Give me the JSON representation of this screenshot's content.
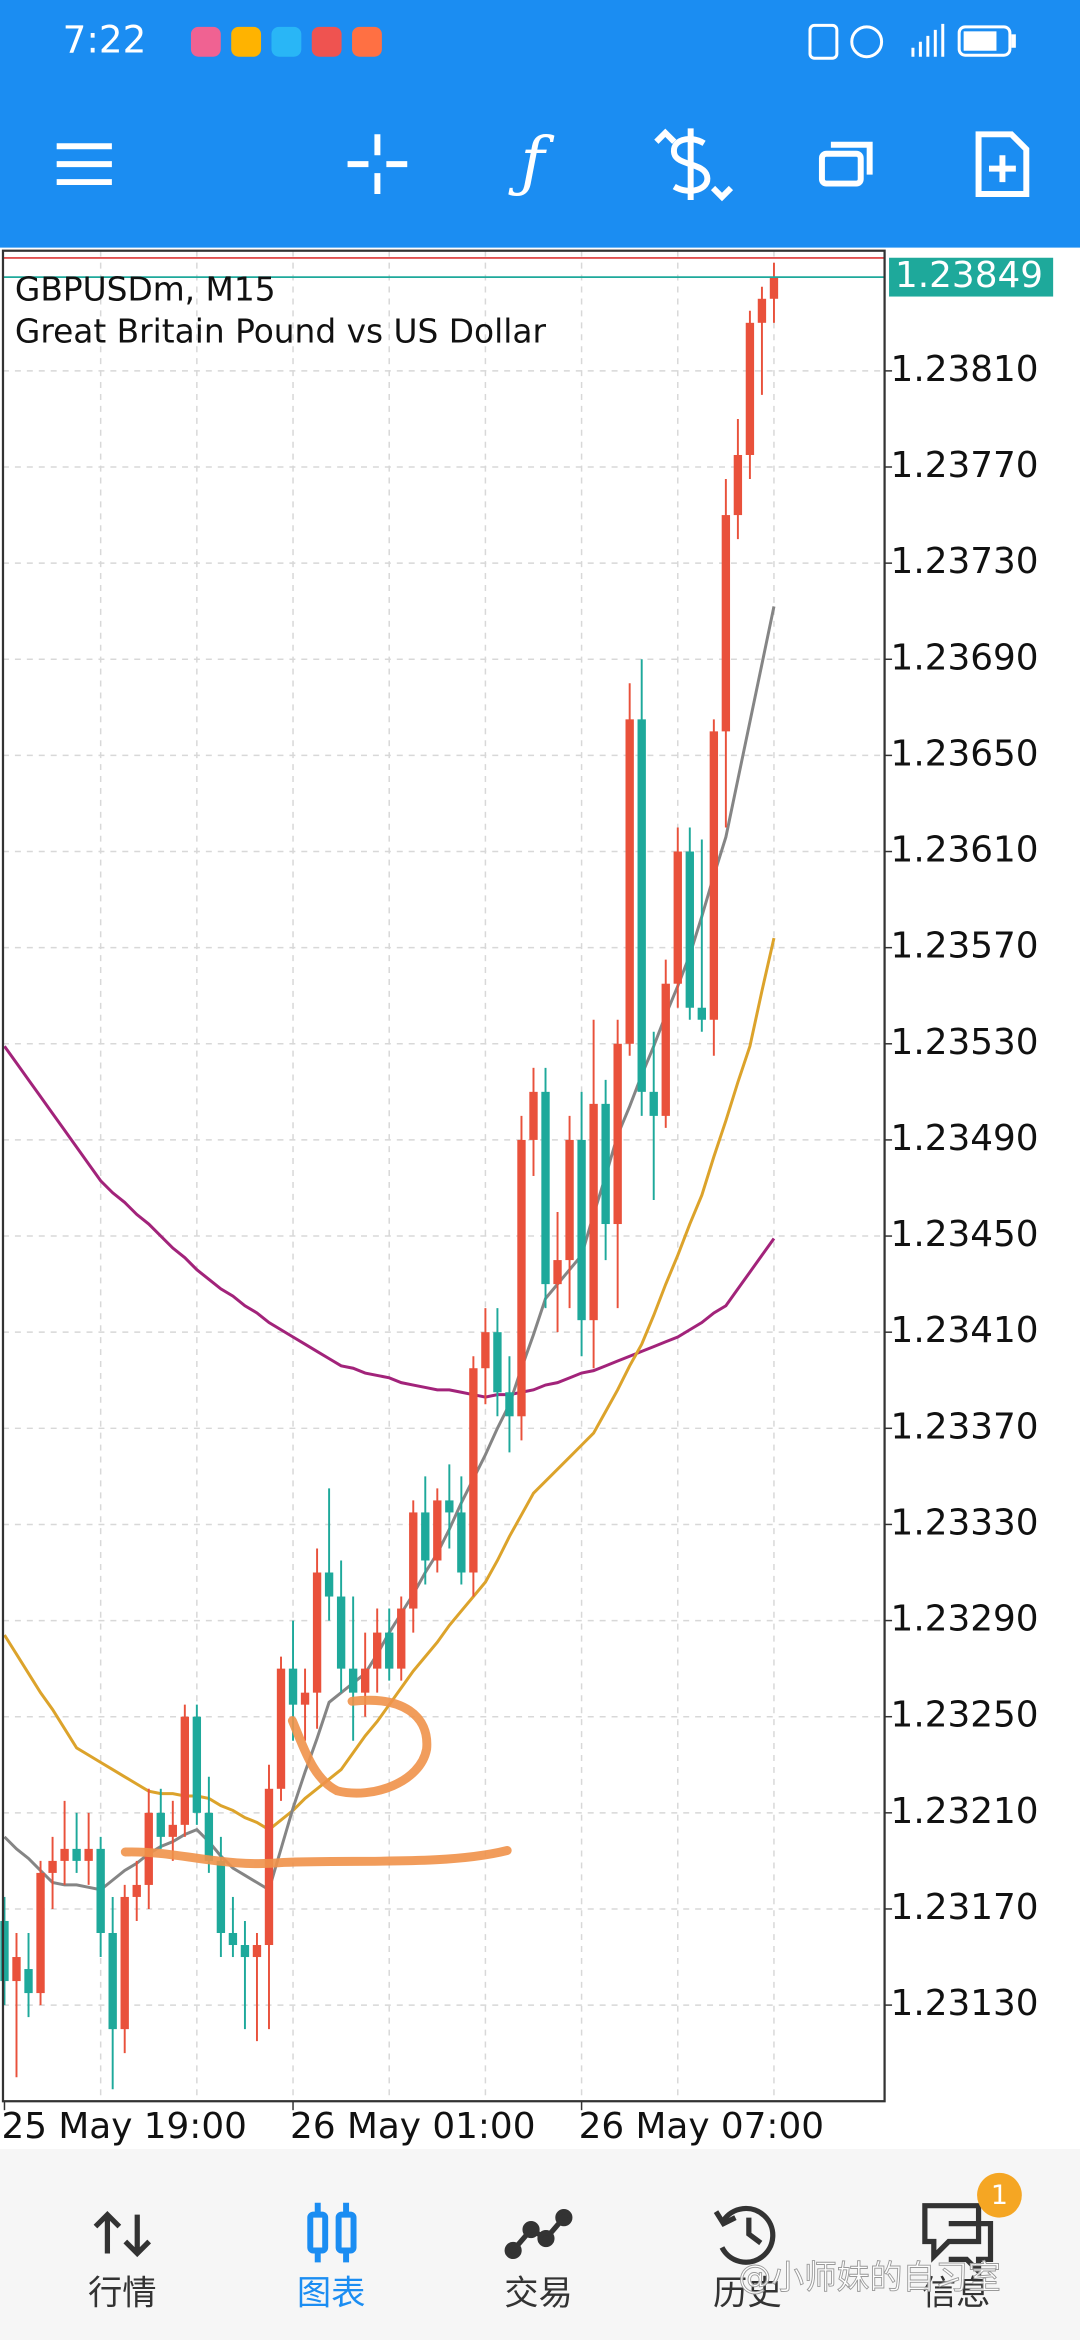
{
  "status_bar": {
    "time": "7:22"
  },
  "chart_header": {
    "symbol": "GBPUSDm, M15",
    "description": "Great Britain Pound vs US Dollar"
  },
  "bottom_nav": [
    "行情",
    "图表",
    "交易",
    "历史",
    "信息"
  ],
  "notification_count": 1,
  "watermark": "@小师妹的自习室",
  "chart_data": {
    "type": "candlestick",
    "categories": [
      "25 May 19:00",
      null,
      null,
      null,
      null,
      null,
      null,
      null,
      null,
      null,
      null,
      null,
      null,
      null,
      null,
      null,
      null,
      null,
      null,
      null,
      null,
      null,
      null,
      null,
      "26 May 01:00",
      null,
      null,
      null,
      null,
      null,
      null,
      null,
      null,
      null,
      null,
      null,
      null,
      null,
      null,
      null,
      null,
      null,
      null,
      null,
      null,
      null,
      null,
      null,
      "26 May 07:00",
      null,
      null,
      null,
      null,
      null,
      null,
      null,
      null,
      null,
      null,
      null,
      null,
      null,
      null,
      null,
      null
    ],
    "open": [
      1.23165,
      1.2314,
      1.23145,
      1.23135,
      1.23185,
      1.2319,
      1.23195,
      1.2319,
      1.23195,
      1.2316,
      1.2312,
      1.23175,
      1.2318,
      1.2321,
      1.232,
      1.23205,
      1.2325,
      1.2321,
      1.2319,
      1.2316,
      1.23155,
      1.2315,
      1.23155,
      1.2322,
      1.2327,
      1.23255,
      1.2326,
      1.2331,
      1.233,
      1.2327,
      1.2326,
      1.2327,
      1.23285,
      1.2327,
      1.23295,
      1.23335,
      1.23315,
      1.2334,
      1.23335,
      1.2331,
      1.23395,
      1.2341,
      1.23385,
      1.23375,
      1.2349,
      1.2351,
      1.2343,
      1.2344,
      1.2349,
      1.23415,
      1.23505,
      1.23455,
      1.2353,
      1.23665,
      1.2351,
      1.235,
      1.23555,
      1.2361,
      1.23545,
      1.2354,
      1.2366,
      1.2375,
      1.23775,
      1.2383,
      1.2384
    ],
    "high": [
      1.23175,
      1.2316,
      1.2316,
      1.2319,
      1.232,
      1.23215,
      1.2321,
      1.2321,
      1.232,
      1.23175,
      1.2318,
      1.2319,
      1.2322,
      1.2322,
      1.23215,
      1.23255,
      1.23255,
      1.23225,
      1.232,
      1.23175,
      1.23165,
      1.2316,
      1.2323,
      1.23275,
      1.2329,
      1.2327,
      1.2332,
      1.23345,
      1.23315,
      1.233,
      1.23285,
      1.23295,
      1.23295,
      1.233,
      1.2334,
      1.2335,
      1.23345,
      1.23355,
      1.2335,
      1.234,
      1.2342,
      1.2342,
      1.234,
      1.235,
      1.2352,
      1.2352,
      1.2346,
      1.235,
      1.2351,
      1.2354,
      1.23515,
      1.2354,
      1.2368,
      1.2369,
      1.23535,
      1.23565,
      1.2362,
      1.2362,
      1.23615,
      1.23665,
      1.23765,
      1.2379,
      1.23835,
      1.23845,
      1.23855
    ],
    "low": [
      1.2313,
      1.231,
      1.23125,
      1.2313,
      1.2317,
      1.2318,
      1.23185,
      1.2318,
      1.2315,
      1.23095,
      1.2311,
      1.23165,
      1.2317,
      1.23195,
      1.2319,
      1.232,
      1.23205,
      1.23185,
      1.2315,
      1.2315,
      1.2312,
      1.23115,
      1.2312,
      1.23215,
      1.2324,
      1.2324,
      1.23245,
      1.2329,
      1.2326,
      1.2324,
      1.2325,
      1.2326,
      1.23265,
      1.23265,
      1.23285,
      1.23305,
      1.2331,
      1.2332,
      1.23305,
      1.233,
      1.2338,
      1.23375,
      1.2336,
      1.23365,
      1.23475,
      1.2342,
      1.2341,
      1.2342,
      1.234,
      1.23395,
      1.2344,
      1.2342,
      1.23525,
      1.235,
      1.23465,
      1.23495,
      1.23545,
      1.2354,
      1.23535,
      1.23525,
      1.2362,
      1.2374,
      1.23765,
      1.238,
      1.2383
    ],
    "close": [
      1.2314,
      1.2315,
      1.23135,
      1.23185,
      1.2319,
      1.23195,
      1.2319,
      1.23195,
      1.2316,
      1.2312,
      1.23175,
      1.2318,
      1.2321,
      1.232,
      1.23205,
      1.2325,
      1.2321,
      1.2319,
      1.2316,
      1.23155,
      1.2315,
      1.23155,
      1.2322,
      1.2327,
      1.23255,
      1.2326,
      1.2331,
      1.233,
      1.2327,
      1.2326,
      1.2327,
      1.23285,
      1.2327,
      1.23295,
      1.23335,
      1.23315,
      1.2334,
      1.23335,
      1.2331,
      1.23395,
      1.2341,
      1.23385,
      1.23375,
      1.2349,
      1.2351,
      1.2343,
      1.2344,
      1.2349,
      1.23415,
      1.23505,
      1.23455,
      1.2353,
      1.23665,
      1.2351,
      1.235,
      1.23555,
      1.2361,
      1.23545,
      1.2354,
      1.2366,
      1.2375,
      1.23775,
      1.2383,
      1.2384,
      1.23849
    ],
    "up_color": "#e9513b",
    "down_color": "#1ea99b",
    "lines": [
      {
        "color": "#a2237a",
        "values": [
          1.23529,
          1.23522,
          1.23515,
          1.23508,
          1.23501,
          1.23494,
          1.23487,
          1.2348,
          1.23473,
          1.23468,
          1.23464,
          1.23459,
          1.23455,
          1.2345,
          1.23445,
          1.23441,
          1.23436,
          1.23432,
          1.23428,
          1.23425,
          1.23421,
          1.23418,
          1.23414,
          1.23411,
          1.23408,
          1.23405,
          1.23402,
          1.23399,
          1.23396,
          1.23395,
          1.23393,
          1.23392,
          1.23391,
          1.23389,
          1.23388,
          1.23387,
          1.23386,
          1.23386,
          1.23385,
          1.23384,
          1.23383,
          1.23384,
          1.23384,
          1.23385,
          1.23386,
          1.23388,
          1.23389,
          1.23391,
          1.23393,
          1.23394,
          1.23396,
          1.23398,
          1.234,
          1.23402,
          1.23404,
          1.23406,
          1.23408,
          1.23411,
          1.23414,
          1.23418,
          1.23421,
          1.23428,
          1.23435,
          1.23442,
          1.23449
        ]
      },
      {
        "color": "#dca32b",
        "values": [
          1.23284,
          1.23276,
          1.23268,
          1.2326,
          1.23253,
          1.23245,
          1.23237,
          1.23234,
          1.23231,
          1.23228,
          1.23225,
          1.23222,
          1.23219,
          1.23218,
          1.23218,
          1.23217,
          1.23217,
          1.23216,
          1.23213,
          1.23211,
          1.23208,
          1.23206,
          1.23203,
          1.23207,
          1.23211,
          1.23216,
          1.2322,
          1.23224,
          1.23228,
          1.23235,
          1.23242,
          1.23248,
          1.23255,
          1.23262,
          1.23269,
          1.23275,
          1.23281,
          1.23288,
          1.23294,
          1.233,
          1.23306,
          1.23315,
          1.23325,
          1.23334,
          1.23343,
          1.23348,
          1.23353,
          1.23358,
          1.23363,
          1.23368,
          1.23377,
          1.23386,
          1.23396,
          1.23405,
          1.23417,
          1.2343,
          1.23442,
          1.23455,
          1.23467,
          1.23483,
          1.23498,
          1.23514,
          1.23529,
          1.23552,
          1.23574
        ]
      },
      {
        "color": "#858585",
        "values": [
          1.232,
          1.23195,
          1.23191,
          1.23186,
          1.23181,
          1.2318,
          1.2318,
          1.23179,
          1.23178,
          1.23182,
          1.23186,
          1.23189,
          1.23193,
          1.23196,
          1.23198,
          1.23201,
          1.23203,
          1.23198,
          1.23192,
          1.23187,
          1.23184,
          1.23181,
          1.23178,
          1.23195,
          1.23212,
          1.23227,
          1.23241,
          1.23256,
          1.2326,
          1.23264,
          1.23268,
          1.23276,
          1.23285,
          1.23293,
          1.23301,
          1.2331,
          1.23318,
          1.23328,
          1.23339,
          1.23349,
          1.23359,
          1.2337,
          1.2338,
          1.23395,
          1.23409,
          1.23424,
          1.2343,
          1.23436,
          1.23442,
          1.23459,
          1.23475,
          1.23492,
          1.23504,
          1.23517,
          1.23529,
          1.23542,
          1.23554,
          1.23567,
          1.23583,
          1.236,
          1.23616,
          1.2364,
          1.23664,
          1.23688,
          1.23712
        ]
      }
    ],
    "ylim": [
      1.2309,
      1.2386
    ],
    "yticks": [
      {
        "value": 1.2313,
        "label": "1.23130"
      },
      {
        "value": 1.2317,
        "label": "1.23170"
      },
      {
        "value": 1.2321,
        "label": "1.23210"
      },
      {
        "value": 1.2325,
        "label": "1.23250"
      },
      {
        "value": 1.2329,
        "label": "1.23290"
      },
      {
        "value": 1.2333,
        "label": "1.23330"
      },
      {
        "value": 1.2337,
        "label": "1.23370"
      },
      {
        "value": 1.2341,
        "label": "1.23410"
      },
      {
        "value": 1.2345,
        "label": "1.23450"
      },
      {
        "value": 1.2349,
        "label": "1.23490"
      },
      {
        "value": 1.2353,
        "label": "1.23530"
      },
      {
        "value": 1.2357,
        "label": "1.23570"
      },
      {
        "value": 1.2361,
        "label": "1.23610"
      },
      {
        "value": 1.2365,
        "label": "1.23650"
      },
      {
        "value": 1.2369,
        "label": "1.23690"
      },
      {
        "value": 1.2373,
        "label": "1.23730"
      },
      {
        "value": 1.2377,
        "label": "1.23770"
      },
      {
        "value": 1.2381,
        "label": "1.23810"
      }
    ],
    "grid": true,
    "current_price": 1.23849,
    "ask_price": 1.23857
  }
}
